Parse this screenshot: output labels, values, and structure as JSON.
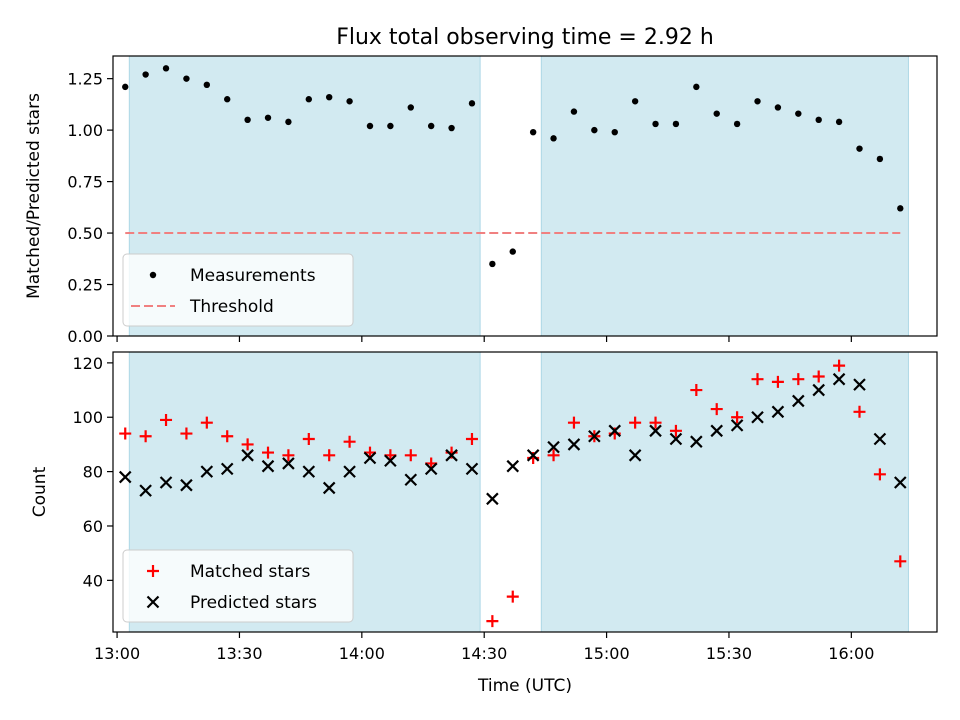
{
  "figure": {
    "title": "Flux total observing time = 2.92 h",
    "xlabel": "Time (UTC)"
  },
  "chart_data": [
    {
      "type": "scatter",
      "ylabel": "Matched/Predicted stars",
      "ylim": [
        0,
        1.36
      ],
      "yticks": [
        0.0,
        0.25,
        0.5,
        0.75,
        1.0,
        1.25
      ],
      "ytick_labels": [
        "0.00",
        "0.25",
        "0.50",
        "0.75",
        "1.00",
        "1.25"
      ],
      "xlim": [
        "12:59",
        "16:21"
      ],
      "xticks": [
        "13:00",
        "13:30",
        "14:00",
        "14:30",
        "15:00",
        "15:30",
        "16:00"
      ],
      "x_tick_labels_visible": false,
      "shaded_intervals": [
        [
          "13:03",
          "14:29"
        ],
        [
          "14:44",
          "16:14"
        ]
      ],
      "shade_color": "#add8e6",
      "legend_position": "lower-left",
      "series": [
        {
          "name": "Measurements",
          "marker": "dot",
          "color": "#000000",
          "points": [
            [
              "13:02",
              1.21
            ],
            [
              "13:07",
              1.27
            ],
            [
              "13:12",
              1.3
            ],
            [
              "13:17",
              1.25
            ],
            [
              "13:22",
              1.22
            ],
            [
              "13:27",
              1.15
            ],
            [
              "13:32",
              1.05
            ],
            [
              "13:37",
              1.06
            ],
            [
              "13:42",
              1.04
            ],
            [
              "13:47",
              1.15
            ],
            [
              "13:52",
              1.16
            ],
            [
              "13:57",
              1.14
            ],
            [
              "14:02",
              1.02
            ],
            [
              "14:07",
              1.02
            ],
            [
              "14:12",
              1.11
            ],
            [
              "14:17",
              1.02
            ],
            [
              "14:22",
              1.01
            ],
            [
              "14:27",
              1.13
            ],
            [
              "14:32",
              0.35
            ],
            [
              "14:37",
              0.41
            ],
            [
              "14:42",
              0.99
            ],
            [
              "14:47",
              0.96
            ],
            [
              "14:52",
              1.09
            ],
            [
              "14:57",
              1.0
            ],
            [
              "15:02",
              0.99
            ],
            [
              "15:07",
              1.14
            ],
            [
              "15:12",
              1.03
            ],
            [
              "15:17",
              1.03
            ],
            [
              "15:22",
              1.21
            ],
            [
              "15:27",
              1.08
            ],
            [
              "15:32",
              1.03
            ],
            [
              "15:37",
              1.14
            ],
            [
              "15:42",
              1.11
            ],
            [
              "15:47",
              1.08
            ],
            [
              "15:52",
              1.05
            ],
            [
              "15:57",
              1.04
            ],
            [
              "16:02",
              0.91
            ],
            [
              "16:07",
              0.86
            ],
            [
              "16:12",
              0.62
            ]
          ]
        },
        {
          "name": "Threshold",
          "marker": "dashed-line",
          "color": "#f08080",
          "points": [
            [
              "13:02",
              0.5
            ],
            [
              "16:12",
              0.5
            ]
          ]
        }
      ]
    },
    {
      "type": "scatter",
      "ylabel": "Count",
      "ylim": [
        21,
        124
      ],
      "yticks": [
        40,
        60,
        80,
        100,
        120
      ],
      "ytick_labels": [
        "40",
        "60",
        "80",
        "100",
        "120"
      ],
      "xlim": [
        "12:59",
        "16:21"
      ],
      "xticks": [
        "13:00",
        "13:30",
        "14:00",
        "14:30",
        "15:00",
        "15:30",
        "16:00"
      ],
      "xtick_labels": [
        "13:00",
        "13:30",
        "14:00",
        "14:30",
        "15:00",
        "15:30",
        "16:00"
      ],
      "shaded_intervals": [
        [
          "13:03",
          "14:29"
        ],
        [
          "14:44",
          "16:14"
        ]
      ],
      "shade_color": "#add8e6",
      "legend_position": "lower-left",
      "series": [
        {
          "name": "Matched stars",
          "marker": "plus",
          "color": "#ff0000",
          "points": [
            [
              "13:02",
              94
            ],
            [
              "13:07",
              93
            ],
            [
              "13:12",
              99
            ],
            [
              "13:17",
              94
            ],
            [
              "13:22",
              98
            ],
            [
              "13:27",
              93
            ],
            [
              "13:32",
              90
            ],
            [
              "13:37",
              87
            ],
            [
              "13:42",
              86
            ],
            [
              "13:47",
              92
            ],
            [
              "13:52",
              86
            ],
            [
              "13:57",
              91
            ],
            [
              "14:02",
              87
            ],
            [
              "14:07",
              86
            ],
            [
              "14:12",
              86
            ],
            [
              "14:17",
              83
            ],
            [
              "14:22",
              87
            ],
            [
              "14:27",
              92
            ],
            [
              "14:32",
              25
            ],
            [
              "14:37",
              34
            ],
            [
              "14:42",
              85
            ],
            [
              "14:47",
              86
            ],
            [
              "14:52",
              98
            ],
            [
              "14:57",
              93
            ],
            [
              "15:02",
              94
            ],
            [
              "15:07",
              98
            ],
            [
              "15:12",
              98
            ],
            [
              "15:17",
              95
            ],
            [
              "15:22",
              110
            ],
            [
              "15:27",
              103
            ],
            [
              "15:32",
              100
            ],
            [
              "15:37",
              114
            ],
            [
              "15:42",
              113
            ],
            [
              "15:47",
              114
            ],
            [
              "15:52",
              115
            ],
            [
              "15:57",
              119
            ],
            [
              "16:02",
              102
            ],
            [
              "16:07",
              79
            ],
            [
              "16:12",
              47
            ]
          ]
        },
        {
          "name": "Predicted stars",
          "marker": "x",
          "color": "#000000",
          "points": [
            [
              "13:02",
              78
            ],
            [
              "13:07",
              73
            ],
            [
              "13:12",
              76
            ],
            [
              "13:17",
              75
            ],
            [
              "13:22",
              80
            ],
            [
              "13:27",
              81
            ],
            [
              "13:32",
              86
            ],
            [
              "13:37",
              82
            ],
            [
              "13:42",
              83
            ],
            [
              "13:47",
              80
            ],
            [
              "13:52",
              74
            ],
            [
              "13:57",
              80
            ],
            [
              "14:02",
              85
            ],
            [
              "14:07",
              84
            ],
            [
              "14:12",
              77
            ],
            [
              "14:17",
              81
            ],
            [
              "14:22",
              86
            ],
            [
              "14:27",
              81
            ],
            [
              "14:32",
              70
            ],
            [
              "14:37",
              82
            ],
            [
              "14:42",
              86
            ],
            [
              "14:47",
              89
            ],
            [
              "14:52",
              90
            ],
            [
              "14:57",
              93
            ],
            [
              "15:02",
              95
            ],
            [
              "15:07",
              86
            ],
            [
              "15:12",
              95
            ],
            [
              "15:17",
              92
            ],
            [
              "15:22",
              91
            ],
            [
              "15:27",
              95
            ],
            [
              "15:32",
              97
            ],
            [
              "15:37",
              100
            ],
            [
              "15:42",
              102
            ],
            [
              "15:47",
              106
            ],
            [
              "15:52",
              110
            ],
            [
              "15:57",
              114
            ],
            [
              "16:02",
              112
            ],
            [
              "16:07",
              92
            ],
            [
              "16:12",
              76
            ]
          ]
        }
      ]
    }
  ]
}
